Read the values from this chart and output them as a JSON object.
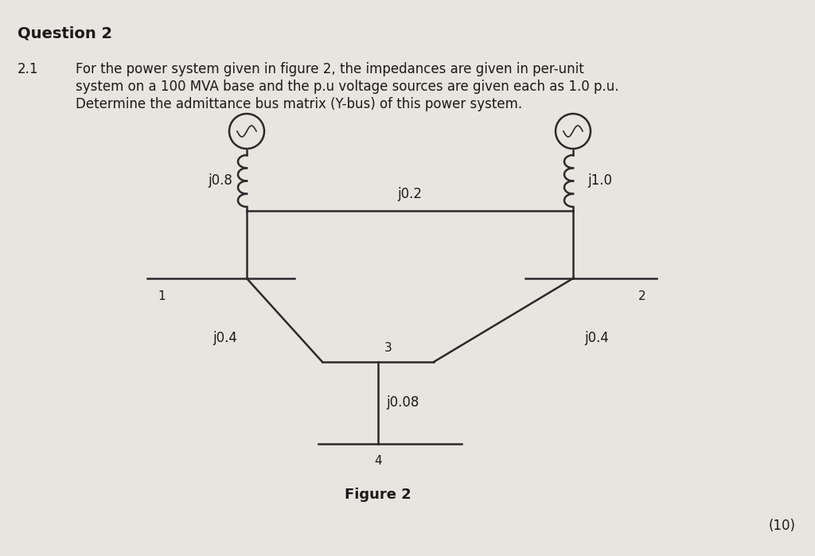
{
  "bg_color": "#e8e5e0",
  "line_color": "#2a2a2a",
  "text_color": "#1a1a1a",
  "title_text": "Question 2",
  "question_num": "2.1",
  "question_line1": "For the power system given in figure 2, the impedances are given in per-unit",
  "question_line2": "system on a 100 MVA base and the p.u voltage sources are given each as 1.0 p.u.",
  "question_line3": "Determine the admittance bus matrix (Y-bus) of this power system.",
  "figure_caption": "Figure 2",
  "marks": "(10)",
  "bus1_label": "1",
  "bus2_label": "2",
  "bus3_label": "3",
  "bus4_label": "4",
  "z_gen1": "j0.8",
  "z_gen2": "j1.0",
  "z_line12": "j0.2",
  "z_line13": "j0.4",
  "z_line23": "j0.4",
  "z_line34": "j0.08",
  "font_size_title": 14,
  "font_size_body": 12,
  "font_size_label": 11,
  "font_size_marks": 12
}
